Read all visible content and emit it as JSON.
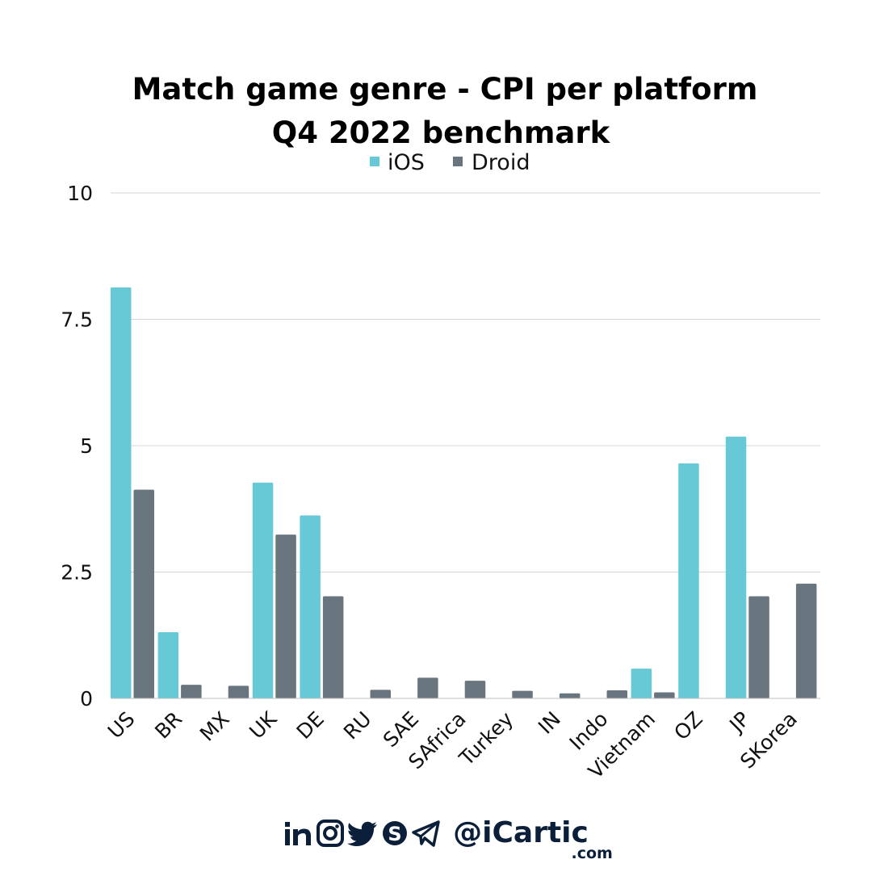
{
  "chart_data": {
    "type": "bar",
    "title_lines": [
      "Match game genre - CPI per platform",
      "Q4 2022  benchmark"
    ],
    "categories": [
      "US",
      "BR",
      "MX",
      "UK",
      "DE",
      "RU",
      "SAE",
      "SAfrica",
      "Turkey",
      "IN",
      "Indo",
      "Vietnam",
      "OZ",
      "JP",
      "SKorea"
    ],
    "series": [
      {
        "name": "iOS",
        "color": "#67c8d6",
        "values": [
          8.13,
          1.31,
          0,
          4.27,
          3.62,
          0,
          0,
          0,
          0,
          0,
          0,
          0.59,
          4.65,
          5.18,
          0
        ]
      },
      {
        "name": "Droid",
        "color": "#69757e",
        "values": [
          4.13,
          0.27,
          0.25,
          3.24,
          2.02,
          0.17,
          0.41,
          0.35,
          0.15,
          0.1,
          0.16,
          0.12,
          0,
          2.02,
          2.27
        ]
      }
    ],
    "yticks": [
      "0",
      "2.5",
      "5",
      "7.5",
      "10"
    ],
    "ytick_values": [
      0,
      2.5,
      5,
      7.5,
      10
    ],
    "ylim": [
      0,
      10
    ],
    "grid": true,
    "legend_position": "top-center"
  },
  "footer": {
    "social_icons": [
      "linkedin-icon",
      "instagram-icon",
      "twitter-icon",
      "skype-icon",
      "telegram-icon"
    ],
    "handle": "@iCartic",
    "domain": ".com"
  }
}
